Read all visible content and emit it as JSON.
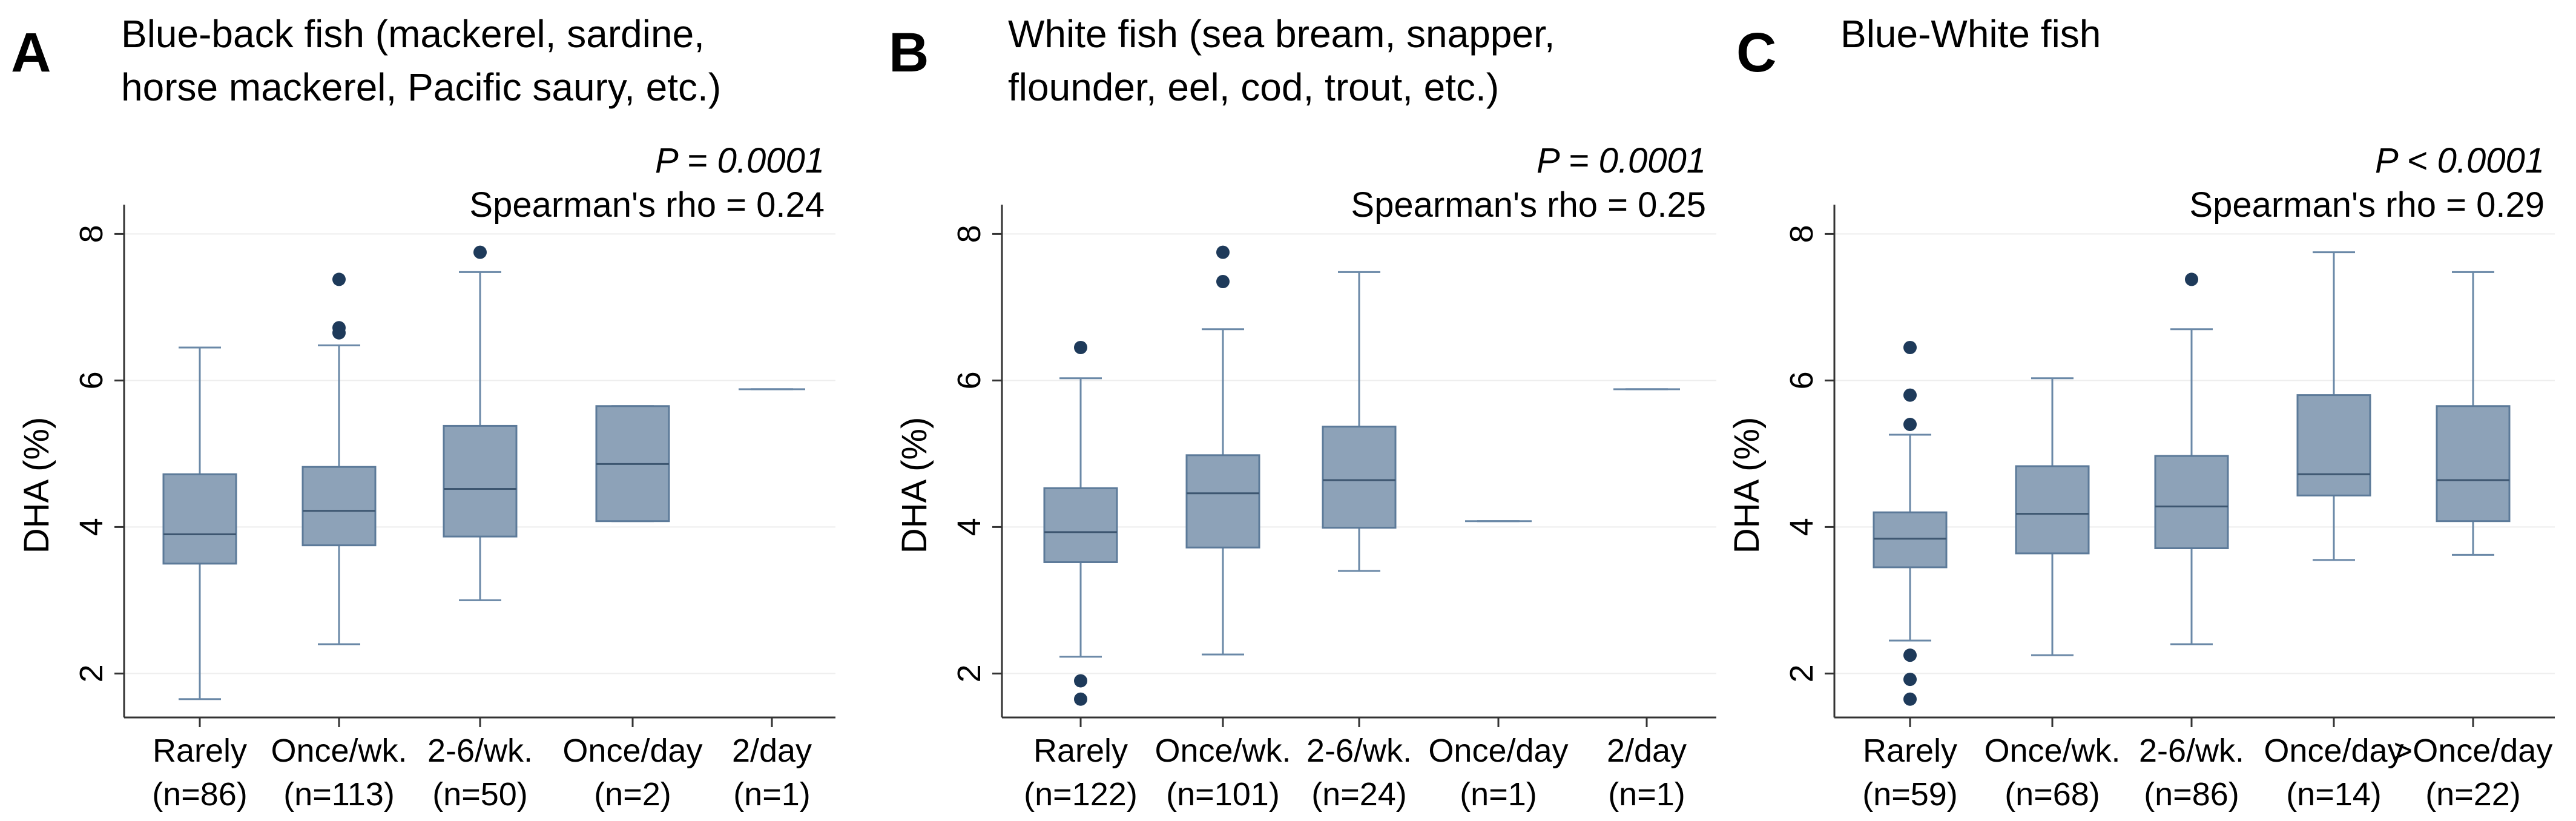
{
  "colors": {
    "box_fill": "#8DA2B8",
    "box_stroke": "#5C7A99",
    "whisker": "#6A88A7",
    "median": "#3D5670",
    "outlier": "#1E3A5A",
    "axis": "#333333",
    "grid": "#EEEEEE",
    "text": "#000000"
  },
  "chart_data": [
    {
      "type": "box",
      "panel_letter": "A",
      "title_lines": [
        "Blue-back fish (mackerel, sardine,",
        "horse mackerel, Pacific saury, etc.)"
      ],
      "p_value": "P = 0.0001",
      "spearman": "Spearman's rho = 0.24",
      "ylabel": "DHA (%)",
      "ylim": [
        1.4,
        8.4
      ],
      "yticks": [
        2,
        4,
        6,
        8
      ],
      "ytick_labels": [
        "2",
        "4",
        "6",
        "8"
      ],
      "grid": true,
      "categories": [
        {
          "label": "Rarely",
          "n": "(n=86)",
          "wlo": 1.65,
          "q1": 3.5,
          "median": 3.9,
          "q3": 4.72,
          "whi": 6.45,
          "outliers": []
        },
        {
          "label": "Once/wk.",
          "n": "(n=113)",
          "wlo": 2.4,
          "q1": 3.75,
          "median": 4.22,
          "q3": 4.82,
          "whi": 6.48,
          "outliers": [
            6.65,
            6.72,
            7.38
          ]
        },
        {
          "label": "2-6/wk.",
          "n": "(n=50)",
          "wlo": 3.0,
          "q1": 3.87,
          "median": 4.52,
          "q3": 5.38,
          "whi": 7.48,
          "outliers": [
            7.75
          ]
        },
        {
          "label": "Once/day",
          "n": "(n=2)",
          "wlo": 4.08,
          "q1": 4.08,
          "median": 4.86,
          "q3": 5.65,
          "whi": 5.65,
          "outliers": []
        },
        {
          "label": "2/day",
          "n": "(n=1)",
          "wlo": 5.88,
          "q1": 5.88,
          "median": 5.88,
          "q3": 5.88,
          "whi": 5.88,
          "outliers": []
        }
      ]
    },
    {
      "type": "box",
      "panel_letter": "B",
      "title_lines": [
        "White fish (sea bream, snapper,",
        "flounder, eel, cod, trout, etc.)"
      ],
      "p_value": "P = 0.0001",
      "spearman": "Spearman's rho = 0.25",
      "ylabel": "DHA (%)",
      "ylim": [
        1.4,
        8.4
      ],
      "yticks": [
        2,
        4,
        6,
        8
      ],
      "ytick_labels": [
        "2",
        "4",
        "6",
        "8"
      ],
      "grid": true,
      "categories": [
        {
          "label": "Rarely",
          "n": "(n=122)",
          "wlo": 2.23,
          "q1": 3.52,
          "median": 3.93,
          "q3": 4.53,
          "whi": 6.03,
          "outliers": [
            6.45,
            1.9,
            1.65
          ]
        },
        {
          "label": "Once/wk.",
          "n": "(n=101)",
          "wlo": 2.26,
          "q1": 3.72,
          "median": 4.46,
          "q3": 4.98,
          "whi": 6.7,
          "outliers": [
            7.35,
            7.75
          ]
        },
        {
          "label": "2-6/wk.",
          "n": "(n=24)",
          "wlo": 3.4,
          "q1": 3.99,
          "median": 4.64,
          "q3": 5.37,
          "whi": 7.48,
          "outliers": []
        },
        {
          "label": "Once/day",
          "n": "(n=1)",
          "wlo": 4.08,
          "q1": 4.08,
          "median": 4.08,
          "q3": 4.08,
          "whi": 4.08,
          "outliers": []
        },
        {
          "label": "2/day",
          "n": "(n=1)",
          "wlo": 5.88,
          "q1": 5.88,
          "median": 5.88,
          "q3": 5.88,
          "whi": 5.88,
          "outliers": []
        }
      ]
    },
    {
      "type": "box",
      "panel_letter": "C",
      "title_lines": [
        "Blue-White fish"
      ],
      "p_value": "P < 0.0001",
      "spearman": "Spearman's rho = 0.29",
      "ylabel": "DHA (%)",
      "ylim": [
        1.4,
        8.4
      ],
      "yticks": [
        2,
        4,
        6,
        8
      ],
      "ytick_labels": [
        "2",
        "4",
        "6",
        "8"
      ],
      "grid": true,
      "categories": [
        {
          "label": "Rarely",
          "n": "(n=59)",
          "wlo": 2.45,
          "q1": 3.45,
          "median": 3.84,
          "q3": 4.2,
          "whi": 5.26,
          "outliers": [
            5.4,
            5.8,
            6.45,
            2.25,
            1.92,
            1.65
          ]
        },
        {
          "label": "Once/wk.",
          "n": "(n=68)",
          "wlo": 2.25,
          "q1": 3.64,
          "median": 4.18,
          "q3": 4.83,
          "whi": 6.03,
          "outliers": []
        },
        {
          "label": "2-6/wk.",
          "n": "(n=86)",
          "wlo": 2.4,
          "q1": 3.71,
          "median": 4.28,
          "q3": 4.97,
          "whi": 6.7,
          "outliers": [
            7.38
          ]
        },
        {
          "label": "Once/day",
          "n": "(n=14)",
          "wlo": 3.55,
          "q1": 4.43,
          "median": 4.72,
          "q3": 5.8,
          "whi": 7.75,
          "outliers": []
        },
        {
          "label": ">Once/day",
          "n": "(n=22)",
          "wlo": 3.62,
          "q1": 4.08,
          "median": 4.64,
          "q3": 5.65,
          "whi": 7.48,
          "outliers": []
        }
      ]
    }
  ]
}
